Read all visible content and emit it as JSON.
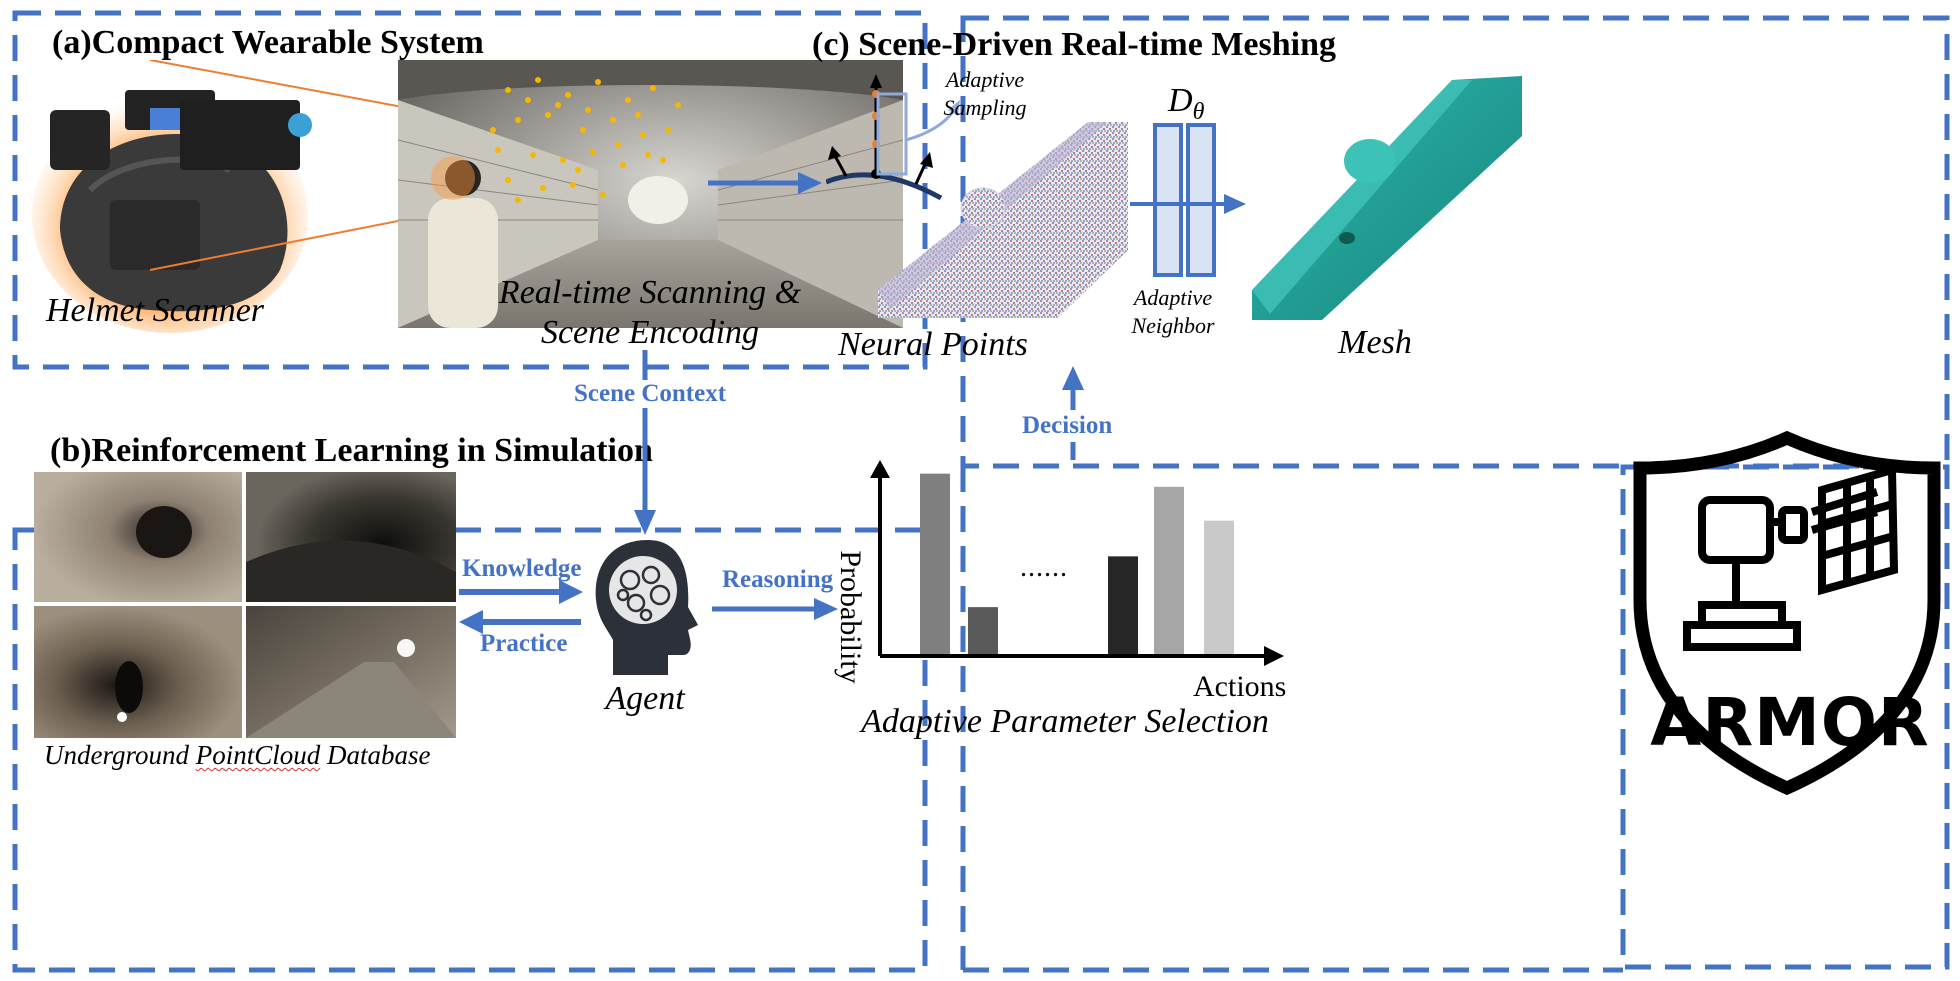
{
  "panels": {
    "a": {
      "title": "(a)Compact Wearable System",
      "helmet_label": "Helmet Scanner",
      "scan_label_line1": "Real-time Scanning &",
      "scan_label_line2": "Scene Encoding"
    },
    "b": {
      "title": "(b)Reinforcement Learning in Simulation",
      "database_label_part1": "Underground",
      "database_label_part2": "PointCloud",
      "database_label_part3": "Database"
    },
    "c": {
      "title": "(c) Scene-Driven Real-time Meshing",
      "adaptive_sampling": "Adaptive Sampling",
      "neural_points": "Neural Points",
      "decoder_symbol": "D",
      "decoder_subscript": "θ",
      "adaptive_neighbor": "Adaptive Neighbor",
      "mesh": "Mesh"
    }
  },
  "flow": {
    "scene_context": "Scene Context",
    "knowledge": "Knowledge",
    "practice": "Practice",
    "reasoning": "Reasoning",
    "decision": "Decision",
    "agent": "Agent"
  },
  "chart": {
    "ylabel": "Probability",
    "xlabel": "Actions",
    "ellipsis": "......",
    "caption": "Adaptive Parameter Selection"
  },
  "chart_data": {
    "type": "bar",
    "values": [
      0.97,
      0.26,
      0.53,
      0.9,
      0.72
    ],
    "colors": [
      "#7f7f7f",
      "#595959",
      "#262626",
      "#a6a6a6",
      "#c9c9c9"
    ],
    "ylabel": "Probability",
    "xlabel": "Actions"
  },
  "logo": {
    "text": "ARMOR"
  },
  "colors": {
    "accent": "#4472c4",
    "mesh": "#1a9e94",
    "tunnel_dots": "#f5b800"
  }
}
